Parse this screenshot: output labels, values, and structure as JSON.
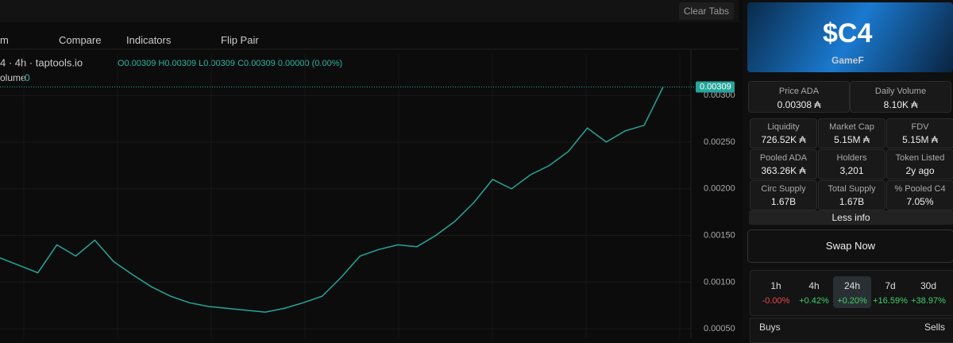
{
  "top_bar": {
    "clear_tabs": "Clear Tabs"
  },
  "toolbar": {
    "interval": "m",
    "compare": "Compare",
    "indicators": "Indicators",
    "flip_pair": "Flip Pair"
  },
  "chart_legend": {
    "symbol": "4 · 4h · taptools.io",
    "ohlc": "O0.00309 H0.00309 L0.00309 C0.00309 0.00000 (0.00%)",
    "volume_label": "olume",
    "volume_value": "0"
  },
  "chart_data": {
    "type": "line",
    "color": "#26a69a",
    "values": [
      0.00126,
      0.00118,
      0.0011,
      0.0014,
      0.00128,
      0.00145,
      0.00122,
      0.00108,
      0.00095,
      0.00085,
      0.00078,
      0.00074,
      0.00072,
      0.0007,
      0.00068,
      0.00072,
      0.00078,
      0.00085,
      0.00105,
      0.00128,
      0.00135,
      0.0014,
      0.00138,
      0.0015,
      0.00165,
      0.00185,
      0.0021,
      0.002,
      0.00215,
      0.00225,
      0.0024,
      0.00265,
      0.0025,
      0.00262,
      0.00268,
      0.00309
    ],
    "ylim": [
      0.0004,
      0.00346
    ],
    "yticks": [
      {
        "value": 0.003,
        "label": "0.00300"
      },
      {
        "value": 0.0025,
        "label": "0.00250"
      },
      {
        "value": 0.002,
        "label": "0.00200"
      },
      {
        "value": 0.0015,
        "label": "0.00150"
      },
      {
        "value": 0.001,
        "label": "0.00100"
      },
      {
        "value": 0.0005,
        "label": "0.00050"
      }
    ],
    "grid": true,
    "last_price": 0.00309
  },
  "token": {
    "banner_title": "$C4",
    "banner_tag": "GameF"
  },
  "headline_stats": [
    {
      "label": "Price ADA",
      "value": "0.00308 ₳"
    },
    {
      "label": "Daily Volume",
      "value": "8.10K ₳"
    }
  ],
  "stats": [
    {
      "label": "Liquidity",
      "value": "726.52K ₳"
    },
    {
      "label": "Market Cap",
      "value": "5.15M ₳"
    },
    {
      "label": "FDV",
      "value": "5.15M ₳"
    },
    {
      "label": "Pooled ADA",
      "value": "363.26K ₳"
    },
    {
      "label": "Holders",
      "value": "3,201"
    },
    {
      "label": "Token Listed",
      "value": "2y ago"
    },
    {
      "label": "Circ Supply",
      "value": "1.67B"
    },
    {
      "label": "Total Supply",
      "value": "1.67B"
    },
    {
      "label": "% Pooled C4",
      "value": "7.05%"
    }
  ],
  "less_info": "Less info",
  "swap": "Swap Now",
  "timeframes": [
    {
      "label": "1h",
      "change": "-0.00%"
    },
    {
      "label": "4h",
      "change": "+0.42%"
    },
    {
      "label": "24h",
      "change": "+0.20%"
    },
    {
      "label": "7d",
      "change": "+16.59%"
    },
    {
      "label": "30d",
      "change": "+38.97%"
    }
  ],
  "trades": {
    "buys": "Buys",
    "sells": "Sells"
  }
}
